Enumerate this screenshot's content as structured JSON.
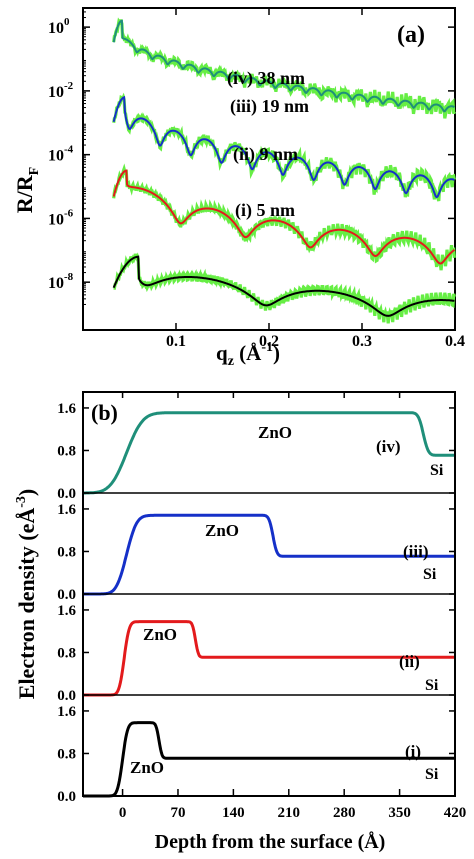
{
  "chart_data": [
    {
      "type": "line",
      "panel_label": "(a)",
      "xlabel": "q",
      "xlabel_sub": "z",
      "xlabel_unit": " (Å",
      "xlabel_unit_sup": "-1",
      "xlabel_close": ")",
      "ylabel": "R/R",
      "ylabel_sub": "F",
      "y_scale": "log",
      "xlim": [
        0.0,
        0.4
      ],
      "ylim_log10": [
        -9.5,
        0.6
      ],
      "x_ticks": [
        0.1,
        0.2,
        0.3,
        0.4
      ],
      "x_tick_labels": [
        "0.1",
        "0.2",
        "0.3",
        "0.4"
      ],
      "y_ticks_log10": [
        0,
        -2,
        -4,
        -6,
        -8
      ],
      "y_tick_mantissa": [
        "10",
        "10",
        "10",
        "10",
        "10"
      ],
      "y_tick_exponents": [
        "0",
        "-2",
        "-4",
        "-6",
        "-8"
      ],
      "colors": {
        "data": "#66ee44",
        "fit_iv": "#1f8f7a",
        "fit_iii": "#1530c8",
        "fit_ii": "#e31a1c",
        "fit_i": "#000000"
      },
      "series": [
        {
          "label": "(iv)  38 nm",
          "thickness_nm": 38,
          "peak_log10": 0.2,
          "peak_q": 0.042,
          "q_start": 0.03,
          "thickness_A": 380,
          "decay_log10": [
            -0.1,
            -2.5
          ],
          "amp": 0.3
        },
        {
          "label": "(iii)  19 nm",
          "thickness_nm": 19,
          "peak_log10": -2.2,
          "peak_q": 0.045,
          "q_start": 0.03,
          "thickness_A": 190,
          "decay_log10": [
            -2.3,
            -4.8
          ],
          "amp": 1.0
        },
        {
          "label": "(ii)  9 nm",
          "thickness_nm": 9,
          "peak_log10": -4.5,
          "peak_q": 0.047,
          "q_start": 0.03,
          "thickness_A": 90,
          "decay_log10": [
            -4.6,
            -6.8
          ],
          "amp": 1.1
        },
        {
          "label": "(i)  5 nm",
          "thickness_nm": 5,
          "peak_log10": -7.2,
          "peak_q": 0.06,
          "q_start": 0.03,
          "thickness_A": 48,
          "decay_log10": [
            -7.3,
            -8.6
          ],
          "amp": 1.0
        }
      ]
    },
    {
      "type": "line",
      "panel_label": "(b)",
      "xlabel": "Depth from the surface (Å)",
      "ylabel": "Electron density (eÅ",
      "ylabel_sup": "-3",
      "ylabel_close": ")",
      "xlim": [
        -50,
        420
      ],
      "ylim": [
        0,
        1.9
      ],
      "x_ticks": [
        0,
        70,
        140,
        210,
        280,
        350,
        420
      ],
      "x_tick_labels": [
        "0",
        "70",
        "140",
        "210",
        "280",
        "350",
        "420"
      ],
      "y_ticks": [
        0.0,
        0.8,
        1.6
      ],
      "y_tick_labels": [
        "0.0",
        "0.8",
        "1.6"
      ],
      "substrate_density": 0.71,
      "film_label": "ZnO",
      "substrate_label": "Si",
      "panels": [
        {
          "label": "(iv)",
          "color": "#1f8f7a",
          "film_density": 1.51,
          "surface_A": 5,
          "interface_A": 380,
          "rough_top": 16,
          "rough_bottom": 5
        },
        {
          "label": "(iii)",
          "color": "#1530c8",
          "film_density": 1.48,
          "surface_A": 5,
          "interface_A": 190,
          "rough_top": 10,
          "rough_bottom": 4
        },
        {
          "label": "(ii)",
          "color": "#e31a1c",
          "film_density": 1.38,
          "surface_A": 2,
          "interface_A": 92,
          "rough_top": 5,
          "rough_bottom": 3
        },
        {
          "label": "(i)",
          "color": "#000000",
          "film_density": 1.38,
          "surface_A": 0,
          "interface_A": 46,
          "rough_top": 5,
          "rough_bottom": 3
        }
      ]
    }
  ]
}
